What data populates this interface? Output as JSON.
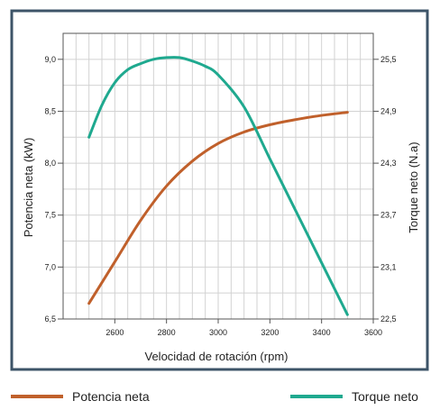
{
  "chart_data": {
    "type": "line",
    "title": "",
    "xlabel": "Velocidad de rotación (rpm)",
    "ylabel_left": "Potencia neta (kW)",
    "ylabel_right": "Torque neto (N.a)",
    "xlim": [
      2400,
      3600
    ],
    "x_ticks": [
      2600,
      2800,
      3000,
      3200,
      3400,
      3600
    ],
    "x_tick_labels": [
      "2600",
      "2800",
      "3000",
      "3200",
      "3400",
      "3600"
    ],
    "ylim_left": [
      6.5,
      9.25
    ],
    "y_ticks_left": [
      6.5,
      7.0,
      7.5,
      8.0,
      8.5,
      9.0
    ],
    "y_tick_labels_left": [
      "6,5",
      "7,0",
      "7,5",
      "8,0",
      "8,5",
      "9,0"
    ],
    "ylim_right": [
      22.5,
      25.8
    ],
    "y_ticks_right": [
      22.5,
      23.1,
      23.7,
      24.3,
      24.9,
      25.5
    ],
    "y_tick_labels_right": [
      "22,5",
      "23,1",
      "23,7",
      "24,3",
      "24,9",
      "25,5"
    ],
    "grid": true,
    "legend_position": "bottom",
    "series": [
      {
        "name": "Potencia neta",
        "axis": "left",
        "color": "#c0602b",
        "x": [
          2500,
          2600,
          2700,
          2800,
          2900,
          3000,
          3100,
          3200,
          3300,
          3400,
          3500
        ],
        "y": [
          6.65,
          7.05,
          7.45,
          7.78,
          8.02,
          8.19,
          8.3,
          8.37,
          8.42,
          8.46,
          8.49
        ]
      },
      {
        "name": "Torque neto",
        "axis": "right",
        "color": "#1fa98f",
        "x": [
          2500,
          2550,
          2600,
          2650,
          2700,
          2750,
          2800,
          2850,
          2900,
          2950,
          3000,
          3100,
          3200,
          3300,
          3400,
          3500
        ],
        "y": [
          24.6,
          24.97,
          25.23,
          25.38,
          25.45,
          25.5,
          25.52,
          25.52,
          25.48,
          25.42,
          25.32,
          24.95,
          24.35,
          23.75,
          23.15,
          22.55
        ]
      }
    ]
  }
}
